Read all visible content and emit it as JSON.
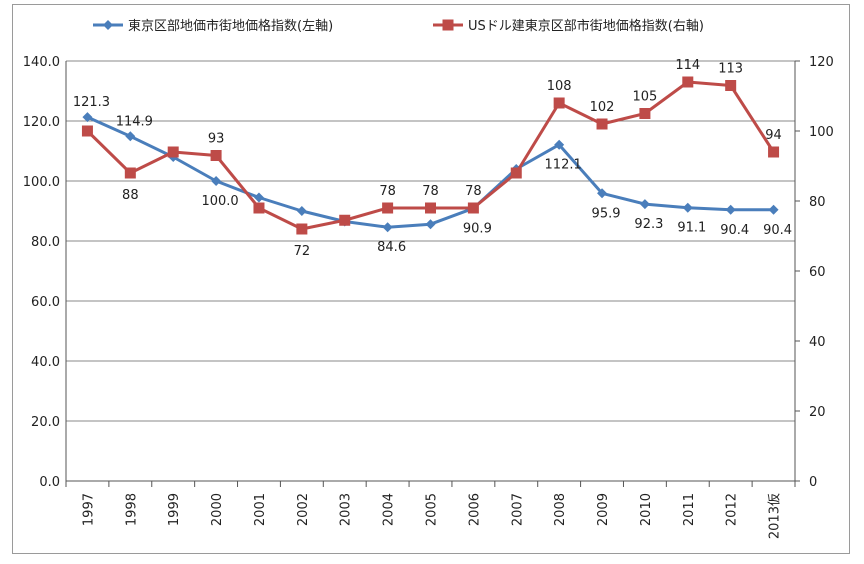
{
  "chart_data": {
    "type": "line",
    "categories": [
      "1997",
      "1998",
      "1999",
      "2000",
      "2001",
      "2002",
      "2003",
      "2004",
      "2005",
      "2006",
      "2007",
      "2008",
      "2009",
      "2010",
      "2011",
      "2012",
      "2013仮"
    ],
    "left_axis": {
      "min": 0,
      "max": 140,
      "step": 20,
      "tick_labels": [
        "0.0",
        "20.0",
        "40.0",
        "60.0",
        "80.0",
        "100.0",
        "120.0",
        "140.0"
      ]
    },
    "right_axis": {
      "min": 0,
      "max": 120,
      "step": 20,
      "tick_labels": [
        "0",
        "20",
        "40",
        "60",
        "80",
        "100",
        "120"
      ]
    },
    "grid": true,
    "legend_position": "top",
    "series": [
      {
        "name": "東京区部地価市街地価格指数(左軸)",
        "axis": "left",
        "color": "#4a7ebb",
        "marker": "diamond",
        "values": [
          121.3,
          114.9,
          108.0,
          100.0,
          94.5,
          90.0,
          86.5,
          84.6,
          85.6,
          90.9,
          104.0,
          112.1,
          95.9,
          92.3,
          91.1,
          90.4,
          90.4
        ],
        "labels": [
          "121.3",
          "114.9",
          "",
          "100.0",
          "",
          "",
          "",
          "84.6",
          "",
          "90.9",
          "",
          "112.1",
          "95.9",
          "92.3",
          "91.1",
          "90.4",
          "90.4"
        ]
      },
      {
        "name": "USドル建東京区部市街地価格指数(右軸)",
        "axis": "right",
        "color": "#be4b48",
        "marker": "square",
        "values": [
          100,
          88,
          94,
          93,
          78,
          72,
          74.5,
          78,
          78,
          78,
          88,
          108,
          102,
          105,
          114,
          113,
          94
        ],
        "labels": [
          "",
          "88",
          "",
          "93",
          "",
          "72",
          "",
          "78",
          "78",
          "78",
          "",
          "108",
          "102",
          "105",
          "114",
          "113",
          "94"
        ]
      }
    ]
  }
}
